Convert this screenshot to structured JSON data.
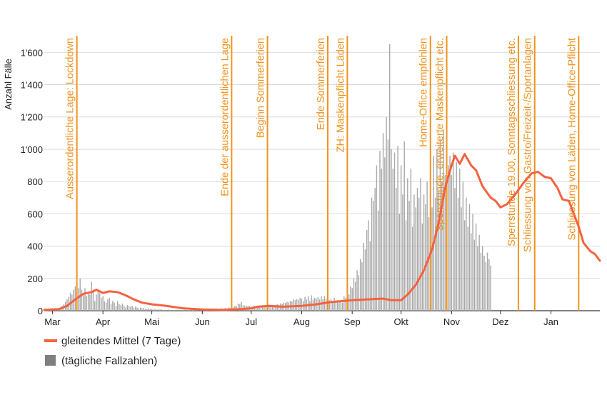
{
  "colors": {
    "bars": "#a9a9a9",
    "smoothed_line": "#f5623f",
    "event_lines": "#f0931e",
    "grid": "#d9d9d9",
    "legend_bar_swatch": "#7f7f7f"
  },
  "chart_data": {
    "type": "bar",
    "title": "",
    "ylabel": "Anzahl Fälle",
    "xlabel": "",
    "ylim": [
      0,
      1650
    ],
    "y_ticks": [
      0,
      200,
      400,
      600,
      800,
      1000,
      1200,
      1400,
      1600
    ],
    "y_tick_labels": [
      "0",
      "200",
      "400",
      "600",
      "800",
      "1'000",
      "1'200",
      "1'400",
      "1'600"
    ],
    "x_range": [
      "2020-02-25",
      "2021-01-31"
    ],
    "x_ticks": [
      {
        "date": "2020-03-01",
        "label": "Mar"
      },
      {
        "date": "2020-04-01",
        "label": "Apr"
      },
      {
        "date": "2020-05-01",
        "label": "Mai"
      },
      {
        "date": "2020-06-01",
        "label": "Jun"
      },
      {
        "date": "2020-07-01",
        "label": "Jul"
      },
      {
        "date": "2020-08-01",
        "label": "Aug"
      },
      {
        "date": "2020-09-01",
        "label": "Sep"
      },
      {
        "date": "2020-10-01",
        "label": "Okt"
      },
      {
        "date": "2020-11-01",
        "label": "Nov"
      },
      {
        "date": "2020-12-01",
        "label": "Dez"
      },
      {
        "date": "2021-01-01",
        "label": "Jan"
      }
    ],
    "grid": true,
    "legend_position": "bottom-left",
    "series": [
      {
        "name": "gleitendes Mittel (7 Tage)",
        "kind": "line",
        "points": [
          [
            "2020-02-25",
            5
          ],
          [
            "2020-03-05",
            10
          ],
          [
            "2020-03-10",
            30
          ],
          [
            "2020-03-15",
            70
          ],
          [
            "2020-03-20",
            105
          ],
          [
            "2020-03-25",
            115
          ],
          [
            "2020-03-28",
            130
          ],
          [
            "2020-04-01",
            110
          ],
          [
            "2020-04-05",
            120
          ],
          [
            "2020-04-10",
            115
          ],
          [
            "2020-04-15",
            95
          ],
          [
            "2020-04-20",
            70
          ],
          [
            "2020-04-25",
            50
          ],
          [
            "2020-05-01",
            40
          ],
          [
            "2020-05-10",
            30
          ],
          [
            "2020-05-20",
            15
          ],
          [
            "2020-06-01",
            8
          ],
          [
            "2020-06-15",
            5
          ],
          [
            "2020-06-25",
            10
          ],
          [
            "2020-07-01",
            15
          ],
          [
            "2020-07-05",
            25
          ],
          [
            "2020-07-12",
            30
          ],
          [
            "2020-07-20",
            25
          ],
          [
            "2020-08-01",
            30
          ],
          [
            "2020-08-10",
            40
          ],
          [
            "2020-08-20",
            55
          ],
          [
            "2020-09-01",
            65
          ],
          [
            "2020-09-10",
            70
          ],
          [
            "2020-09-20",
            75
          ],
          [
            "2020-09-25",
            65
          ],
          [
            "2020-10-01",
            65
          ],
          [
            "2020-10-05",
            100
          ],
          [
            "2020-10-10",
            160
          ],
          [
            "2020-10-15",
            250
          ],
          [
            "2020-10-20",
            380
          ],
          [
            "2020-10-24",
            540
          ],
          [
            "2020-10-28",
            760
          ],
          [
            "2020-11-01",
            900
          ],
          [
            "2020-11-03",
            960
          ],
          [
            "2020-11-06",
            910
          ],
          [
            "2020-11-09",
            970
          ],
          [
            "2020-11-13",
            900
          ],
          [
            "2020-11-16",
            870
          ],
          [
            "2020-11-20",
            770
          ],
          [
            "2020-11-25",
            700
          ],
          [
            "2020-11-28",
            680
          ],
          [
            "2020-12-01",
            640
          ],
          [
            "2020-12-05",
            660
          ],
          [
            "2020-12-10",
            720
          ],
          [
            "2020-12-15",
            790
          ],
          [
            "2020-12-20",
            850
          ],
          [
            "2020-12-24",
            860
          ],
          [
            "2020-12-28",
            830
          ],
          [
            "2021-01-01",
            820
          ],
          [
            "2021-01-05",
            760
          ],
          [
            "2021-01-08",
            690
          ],
          [
            "2021-01-12",
            680
          ],
          [
            "2021-01-15",
            600
          ],
          [
            "2021-01-18",
            520
          ],
          [
            "2021-01-21",
            420
          ],
          [
            "2021-01-25",
            370
          ],
          [
            "2021-01-28",
            350
          ],
          [
            "2021-01-31",
            310
          ]
        ]
      },
      {
        "name": "(tägliche Fallzahlen)",
        "kind": "bars",
        "first_date": "2020-02-25",
        "values": [
          1,
          1,
          2,
          2,
          3,
          4,
          5,
          6,
          8,
          12,
          20,
          30,
          40,
          55,
          70,
          85,
          110,
          100,
          130,
          150,
          120,
          140,
          200,
          130,
          100,
          140,
          90,
          110,
          100,
          180,
          120,
          60,
          100,
          120,
          110,
          80,
          90,
          60,
          50,
          70,
          80,
          40,
          60,
          50,
          30,
          60,
          40,
          35,
          45,
          30,
          20,
          35,
          30,
          25,
          30,
          20,
          25,
          20,
          15,
          20,
          15,
          18,
          12,
          10,
          14,
          10,
          12,
          8,
          10,
          6,
          8,
          7,
          9,
          5,
          6,
          5,
          7,
          5,
          6,
          4,
          5,
          4,
          6,
          4,
          5,
          3,
          6,
          5,
          4,
          3,
          5,
          4,
          6,
          5,
          4,
          5,
          4,
          6,
          3,
          5,
          7,
          5,
          6,
          8,
          6,
          10,
          8,
          12,
          10,
          15,
          12,
          18,
          15,
          20,
          18,
          25,
          22,
          30,
          28,
          45,
          40,
          55,
          35,
          30,
          32,
          28,
          30,
          25,
          27,
          30,
          28,
          25,
          30,
          28,
          30,
          25,
          32,
          30,
          28,
          35,
          30,
          33,
          36,
          40,
          38,
          45,
          42,
          50,
          48,
          55,
          52,
          60,
          58,
          70,
          65,
          72,
          68,
          80,
          75,
          60,
          85,
          70,
          90,
          60,
          95,
          70,
          80,
          75,
          85,
          70,
          88,
          72,
          90,
          75,
          60,
          65,
          70,
          60,
          80,
          55,
          65,
          60,
          55,
          50,
          90,
          80,
          110,
          100,
          150,
          140,
          200,
          180,
          250,
          220,
          320,
          300,
          420,
          380,
          500,
          560,
          430,
          700,
          680,
          760,
          900,
          620,
          990,
          880,
          1100,
          950,
          1200,
          1060,
          1650,
          1000,
          880,
          980,
          760,
          1020,
          600,
          900,
          720,
          1050,
          560,
          820,
          680,
          880,
          520,
          720,
          640,
          760,
          700,
          820,
          540,
          720,
          660,
          800,
          580,
          720,
          640,
          960,
          700,
          1000,
          740,
          1060,
          800,
          1120,
          840,
          1200,
          900,
          960,
          840,
          980,
          760,
          920,
          700,
          880,
          640,
          800,
          560,
          700,
          520,
          660,
          480,
          600,
          440,
          540,
          400,
          470,
          360,
          400,
          340,
          300,
          360,
          320,
          280
        ]
      }
    ],
    "events": [
      {
        "date": "2020-03-16",
        "label": "Ausserordentliche Lage: Lockdown"
      },
      {
        "date": "2020-06-19",
        "label": "Ende der ausserordentlichen Lage"
      },
      {
        "date": "2020-07-11",
        "label": "Beginn Sommerferien"
      },
      {
        "date": "2020-08-17",
        "label": "Ende Sommerferien"
      },
      {
        "date": "2020-08-29",
        "label": "ZH: Maskenpflicht Läden"
      },
      {
        "date": "2020-10-19",
        "label": "Home-Office empfohlen"
      },
      {
        "date": "2020-10-29",
        "label": "Sperrstunde, erweiterte Maskenpflicht etc."
      },
      {
        "date": "2020-12-12",
        "label": "Sperrstunde 19.00, Sonntagsschliessung etc."
      },
      {
        "date": "2020-12-22",
        "label": "Schliessung von Gastro/Freizeit-/Sportanlagen"
      },
      {
        "date": "2021-01-18",
        "label": "Schliessung von Läden, Home-Office-Pflicht"
      }
    ]
  }
}
